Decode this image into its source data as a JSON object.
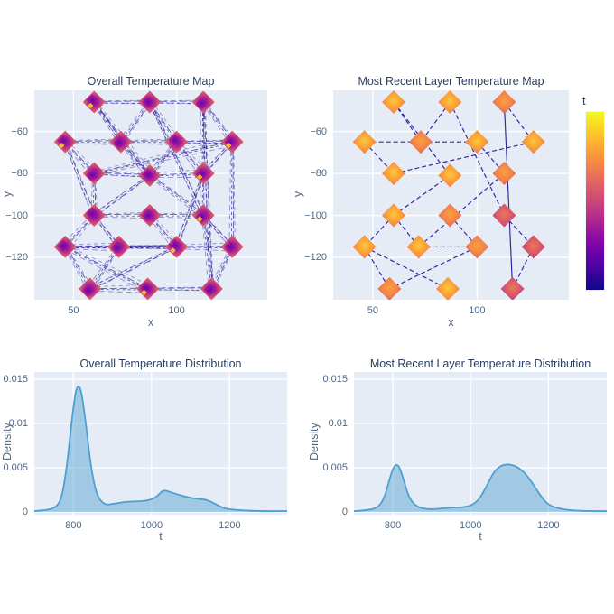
{
  "colors": {
    "plot_bg": "#e5ecf6",
    "grid": "#ffffff",
    "title_text": "#2a3f5f",
    "tick_text": "#506784",
    "path_line": "#2a189a",
    "density_line": "#4d9fcf",
    "density_fill": "rgba(77,159,207,0.45)",
    "colorbar_scale": [
      "#f0f921",
      "#fcce25",
      "#fca636",
      "#f2844b",
      "#e16462",
      "#cc4778",
      "#b12a90",
      "#8f0da4",
      "#6a00a8",
      "#41049d",
      "#0d0887"
    ]
  },
  "colorbar": {
    "title": "t"
  },
  "chart_data": [
    {
      "id": "overall_map",
      "type": "scatter",
      "title": "Overall Temperature Map",
      "xlabel": "x",
      "ylabel": "y",
      "xlim": [
        31,
        144
      ],
      "ylim": [
        -140.2,
        -40.4
      ],
      "xticks": [
        50,
        100
      ],
      "yticks": [
        -60,
        -80,
        -100,
        -120
      ],
      "legend": "none",
      "grid": "on",
      "marker_colormap": "plasma",
      "line_style": "multi",
      "markers": [
        [
          60,
          -46
        ],
        [
          87,
          -46
        ],
        [
          113,
          -46
        ],
        [
          46,
          -65
        ],
        [
          73,
          -65
        ],
        [
          100,
          -65
        ],
        [
          127,
          -65
        ],
        [
          60,
          -80
        ],
        [
          87,
          -81
        ],
        [
          113,
          -80
        ],
        [
          60,
          -100
        ],
        [
          87,
          -100
        ],
        [
          113,
          -100
        ],
        [
          46,
          -115
        ],
        [
          72,
          -115
        ],
        [
          100,
          -115
        ],
        [
          127,
          -115
        ],
        [
          58,
          -135
        ],
        [
          86,
          -135
        ],
        [
          117,
          -135
        ]
      ],
      "edges": [
        [
          0,
          1
        ],
        [
          0,
          4
        ],
        [
          0,
          8
        ],
        [
          1,
          2
        ],
        [
          1,
          4
        ],
        [
          1,
          5
        ],
        [
          1,
          12
        ],
        [
          2,
          6
        ],
        [
          2,
          9
        ],
        [
          2,
          19
        ],
        [
          3,
          4
        ],
        [
          3,
          7
        ],
        [
          3,
          10
        ],
        [
          4,
          5
        ],
        [
          4,
          8
        ],
        [
          5,
          6
        ],
        [
          5,
          8
        ],
        [
          5,
          9
        ],
        [
          6,
          9
        ],
        [
          6,
          16
        ],
        [
          7,
          6
        ],
        [
          7,
          8
        ],
        [
          7,
          10
        ],
        [
          8,
          9
        ],
        [
          8,
          10
        ],
        [
          8,
          12
        ],
        [
          9,
          12
        ],
        [
          9,
          15
        ],
        [
          10,
          11
        ],
        [
          10,
          13
        ],
        [
          10,
          14
        ],
        [
          11,
          12
        ],
        [
          11,
          15
        ],
        [
          12,
          16
        ],
        [
          12,
          19
        ],
        [
          13,
          14
        ],
        [
          13,
          15
        ],
        [
          13,
          17
        ],
        [
          13,
          18
        ],
        [
          14,
          15
        ],
        [
          14,
          17
        ],
        [
          15,
          16
        ],
        [
          15,
          17
        ],
        [
          16,
          19
        ],
        [
          17,
          18
        ],
        [
          18,
          19
        ]
      ]
    },
    {
      "id": "recent_map",
      "type": "scatter",
      "title": "Most Recent Layer Temperature Map",
      "xlabel": "x",
      "ylabel": "y",
      "xlim": [
        31,
        144
      ],
      "ylim": [
        -140.2,
        -40.4
      ],
      "xticks": [
        50,
        100
      ],
      "yticks": [
        -60,
        -80,
        -100,
        -120
      ],
      "legend": "none",
      "grid": "on",
      "marker_colormap": "plasma",
      "line_style": "single",
      "markers": [
        [
          60,
          -46
        ],
        [
          87,
          -46
        ],
        [
          113,
          -46
        ],
        [
          46,
          -65
        ],
        [
          73,
          -65
        ],
        [
          100,
          -65
        ],
        [
          127,
          -65
        ],
        [
          60,
          -80
        ],
        [
          87,
          -81
        ],
        [
          113,
          -80
        ],
        [
          60,
          -100
        ],
        [
          87,
          -100
        ],
        [
          113,
          -100
        ],
        [
          46,
          -115
        ],
        [
          72,
          -115
        ],
        [
          100,
          -115
        ],
        [
          127,
          -115
        ],
        [
          58,
          -135
        ],
        [
          86,
          -135
        ],
        [
          117,
          -135
        ]
      ],
      "tones": [
        0,
        0,
        0.3,
        0,
        0.3,
        0,
        0,
        0,
        0,
        0.3,
        0,
        0.3,
        0.6,
        0,
        0,
        0.3,
        0.8,
        0.3,
        0,
        0.8
      ],
      "edges": [
        [
          0,
          4
        ],
        [
          0,
          8
        ],
        [
          1,
          4
        ],
        [
          1,
          12
        ],
        [
          2,
          6
        ],
        [
          2,
          19,
          "solid"
        ],
        [
          3,
          4
        ],
        [
          3,
          7
        ],
        [
          4,
          5
        ],
        [
          5,
          9
        ],
        [
          7,
          6
        ],
        [
          8,
          10
        ],
        [
          9,
          14
        ],
        [
          10,
          13
        ],
        [
          10,
          14
        ],
        [
          11,
          15
        ],
        [
          12,
          16
        ],
        [
          13,
          17
        ],
        [
          13,
          18
        ],
        [
          14,
          15
        ],
        [
          15,
          17
        ],
        [
          16,
          19
        ]
      ]
    },
    {
      "id": "overall_density",
      "type": "area",
      "title": "Overall Temperature Distribution",
      "xlabel": "t",
      "ylabel": "Density",
      "xlim": [
        700,
        1347
      ],
      "ylim": [
        -0.0003,
        0.0158
      ],
      "xticks": [
        800,
        1000,
        1200
      ],
      "yticks": [
        0,
        0.005,
        0.01,
        0.015
      ],
      "legend": "none",
      "grid": "on",
      "x": [
        700,
        730,
        755,
        770,
        783,
        795,
        805,
        812,
        820,
        832,
        845,
        860,
        880,
        900,
        925,
        950,
        975,
        1000,
        1015,
        1030,
        1045,
        1065,
        1090,
        1115,
        1140,
        1160,
        1180,
        1200,
        1230,
        1270,
        1310,
        1347
      ],
      "y": [
        0.0001,
        0.0002,
        0.0005,
        0.0015,
        0.005,
        0.01,
        0.0135,
        0.0143,
        0.0138,
        0.01,
        0.005,
        0.0018,
        0.0008,
        0.0009,
        0.0011,
        0.0012,
        0.0012,
        0.0014,
        0.0018,
        0.0025,
        0.0023,
        0.002,
        0.0017,
        0.0015,
        0.0014,
        0.001,
        0.0005,
        0.0003,
        0.0002,
        0.0001,
        0.0001,
        0.0001
      ]
    },
    {
      "id": "recent_density",
      "type": "area",
      "title": "Most Recent Layer Temperature Distribution",
      "xlabel": "t",
      "ylabel": "Density",
      "xlim": [
        700,
        1350
      ],
      "ylim": [
        -0.0003,
        0.0158
      ],
      "xticks": [
        800,
        1000,
        1200
      ],
      "yticks": [
        0,
        0.005,
        0.01,
        0.015
      ],
      "legend": "none",
      "grid": "on",
      "x": [
        700,
        740,
        765,
        780,
        792,
        802,
        810,
        818,
        828,
        840,
        855,
        875,
        900,
        925,
        950,
        975,
        1000,
        1020,
        1040,
        1060,
        1080,
        1100,
        1120,
        1140,
        1160,
        1180,
        1200,
        1225,
        1255,
        1300,
        1350
      ],
      "y": [
        0.0001,
        0.0002,
        0.0006,
        0.0018,
        0.0038,
        0.0051,
        0.0054,
        0.005,
        0.0036,
        0.0018,
        0.0008,
        0.0004,
        0.0003,
        0.0004,
        0.0005,
        0.0005,
        0.0007,
        0.0013,
        0.0028,
        0.0046,
        0.0053,
        0.0054,
        0.0051,
        0.0044,
        0.0032,
        0.0018,
        0.0008,
        0.0004,
        0.0002,
        0.0001,
        0.0001
      ]
    }
  ]
}
